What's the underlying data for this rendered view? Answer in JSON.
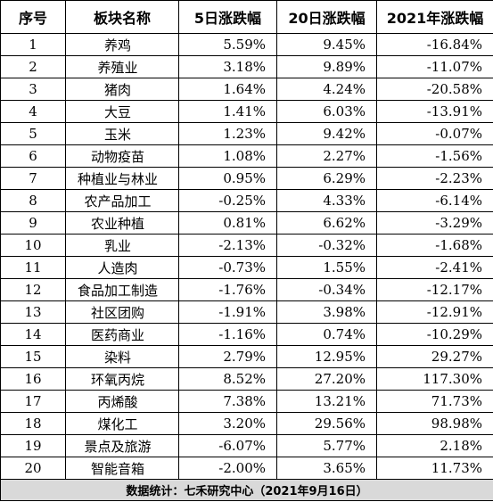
{
  "table": {
    "headers": [
      "序号",
      "板块名称",
      "5日涨跌幅",
      "20日涨跌幅",
      "2021年涨跌幅"
    ],
    "rows": [
      {
        "idx": "1",
        "name": "养鸡",
        "d5": "5.59%",
        "d20": "9.45%",
        "y2021": "-16.84%"
      },
      {
        "idx": "2",
        "name": "养殖业",
        "d5": "3.18%",
        "d20": "9.89%",
        "y2021": "-11.07%"
      },
      {
        "idx": "3",
        "name": "猪肉",
        "d5": "1.64%",
        "d20": "4.24%",
        "y2021": "-20.58%"
      },
      {
        "idx": "4",
        "name": "大豆",
        "d5": "1.41%",
        "d20": "6.03%",
        "y2021": "-13.91%"
      },
      {
        "idx": "5",
        "name": "玉米",
        "d5": "1.23%",
        "d20": "9.42%",
        "y2021": "-0.07%"
      },
      {
        "idx": "6",
        "name": "动物疫苗",
        "d5": "1.08%",
        "d20": "2.27%",
        "y2021": "-1.56%"
      },
      {
        "idx": "7",
        "name": "种植业与林业",
        "d5": "0.95%",
        "d20": "6.29%",
        "y2021": "-2.23%"
      },
      {
        "idx": "8",
        "name": "农产品加工",
        "d5": "-0.25%",
        "d20": "4.33%",
        "y2021": "-6.14%"
      },
      {
        "idx": "9",
        "name": "农业种植",
        "d5": "0.81%",
        "d20": "6.62%",
        "y2021": "-3.29%"
      },
      {
        "idx": "10",
        "name": "乳业",
        "d5": "-2.13%",
        "d20": "-0.32%",
        "y2021": "-1.68%"
      },
      {
        "idx": "11",
        "name": "人造肉",
        "d5": "-0.73%",
        "d20": "1.55%",
        "y2021": "-2.41%"
      },
      {
        "idx": "12",
        "name": "食品加工制造",
        "d5": "-1.76%",
        "d20": "-0.34%",
        "y2021": "-12.17%"
      },
      {
        "idx": "13",
        "name": "社区团购",
        "d5": "-1.91%",
        "d20": "3.98%",
        "y2021": "-12.91%"
      },
      {
        "idx": "14",
        "name": "医药商业",
        "d5": "-1.16%",
        "d20": "0.74%",
        "y2021": "-10.29%"
      },
      {
        "idx": "15",
        "name": "染料",
        "d5": "2.79%",
        "d20": "12.95%",
        "y2021": "29.27%"
      },
      {
        "idx": "16",
        "name": "环氧丙烷",
        "d5": "8.52%",
        "d20": "27.20%",
        "y2021": "117.30%"
      },
      {
        "idx": "17",
        "name": "丙烯酸",
        "d5": "7.38%",
        "d20": "13.21%",
        "y2021": "71.73%"
      },
      {
        "idx": "18",
        "name": "煤化工",
        "d5": "3.20%",
        "d20": "29.56%",
        "y2021": "98.98%"
      },
      {
        "idx": "19",
        "name": "景点及旅游",
        "d5": "-6.07%",
        "d20": "5.77%",
        "y2021": "2.18%"
      },
      {
        "idx": "20",
        "name": "智能音箱",
        "d5": "-2.00%",
        "d20": "3.65%",
        "y2021": "11.73%"
      }
    ],
    "footer": "数据统计：七禾研究中心（2021年9月16日）"
  }
}
